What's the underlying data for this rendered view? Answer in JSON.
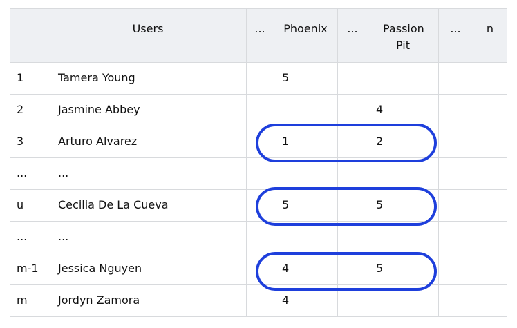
{
  "header": {
    "index": "",
    "users": "Users",
    "ellipsis_1": "...",
    "phoenix": "Phoenix",
    "ellipsis_2": "...",
    "passion_pit": "Passion Pit",
    "ellipsis_3": "...",
    "n": "n"
  },
  "rows": [
    {
      "index": "1",
      "user": "Tamera Young",
      "phoenix": "5",
      "passion_pit": ""
    },
    {
      "index": "2",
      "user": "Jasmine Abbey",
      "phoenix": "",
      "passion_pit": "4"
    },
    {
      "index": "3",
      "user": "Arturo Alvarez",
      "phoenix": "1",
      "passion_pit": "2"
    },
    {
      "index": "...",
      "user": "...",
      "phoenix": "",
      "passion_pit": ""
    },
    {
      "index": "u",
      "user": "Cecilia De La Cueva",
      "phoenix": "5",
      "passion_pit": "5"
    },
    {
      "index": "...",
      "user": "...",
      "phoenix": "",
      "passion_pit": ""
    },
    {
      "index": "m-1",
      "user": "Jessica Nguyen",
      "phoenix": "4",
      "passion_pit": "5"
    },
    {
      "index": "m",
      "user": "Jordyn Zamora",
      "phoenix": "4",
      "passion_pit": ""
    }
  ],
  "highlight": {
    "color": "#1e3fdc",
    "rows": [
      2,
      4,
      6
    ]
  }
}
